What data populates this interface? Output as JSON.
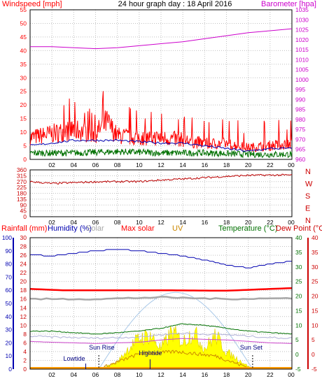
{
  "title": "24 hour graph day : 18 April 2016",
  "colors": {
    "windspeed": "#ff0000",
    "wind_avg": "#0000b0",
    "wind_green": "#007000",
    "barometer": "#cc00cc",
    "direction": "#bb0000",
    "humidity": "#0000b0",
    "solar": "#a8a8a8",
    "max_solar": "#ff0000",
    "uv": "#cc8800",
    "temperature": "#007000",
    "dewpoint": "#cc0000",
    "sun_curve": "#a8c8e8",
    "solar_fill": "#ffff00"
  },
  "labels": {
    "windspeed": "Windspeed [mph]",
    "barometer": "Barometer [hpa]",
    "rainfall": "Rainfall (mm)",
    "humidity": "Humidity (%)",
    "solar": "Solar",
    "max_solar": "Max solar",
    "uv": "UV",
    "temperature": "Temperature (°C)",
    "dewpoint": "Dew Point (°C)",
    "sunrise": "Sun Rise",
    "sunset": "Sun Set",
    "lowtide": "Lowtide",
    "hightide": "Hightide"
  },
  "chart_data": [
    {
      "type": "line",
      "name": "wind-barometer",
      "x_ticks": [
        "02",
        "04",
        "06",
        "08",
        "10",
        "12",
        "14",
        "16",
        "18",
        "20",
        "22",
        "00"
      ],
      "y_left": {
        "label": "Windspeed [mph]",
        "range": [
          0,
          55
        ],
        "ticks": [
          0,
          5,
          10,
          15,
          20,
          25,
          30,
          35,
          40,
          45,
          50,
          55
        ]
      },
      "y_right": {
        "label": "Barometer [hpa]",
        "range": [
          960,
          1035
        ],
        "ticks": [
          960,
          965,
          970,
          975,
          980,
          985,
          990,
          995,
          1000,
          1005,
          1010,
          1015,
          1020,
          1025,
          1030,
          1035
        ]
      },
      "barometer": {
        "hours": [
          0,
          2,
          4,
          6,
          8,
          10,
          12,
          14,
          16,
          18,
          20,
          22,
          24
        ],
        "values": [
          1016.5,
          1016.5,
          1016,
          1015.5,
          1016,
          1017,
          1018,
          1019,
          1020.5,
          1022,
          1023.5,
          1024.5,
          1025.5
        ]
      },
      "gust_envelope": {
        "hours": [
          0,
          2,
          4,
          6,
          7,
          8,
          10,
          12,
          14,
          16,
          18,
          20,
          22,
          24
        ],
        "values": [
          11,
          13,
          15,
          13,
          19,
          12,
          11,
          11,
          10,
          8,
          8,
          6,
          7,
          8
        ]
      },
      "avg_wind": {
        "hours": [
          0,
          2,
          4,
          6,
          8,
          10,
          12,
          14,
          16,
          18,
          20,
          22,
          24
        ],
        "values": [
          5,
          6,
          7,
          7,
          7,
          6.5,
          6,
          6,
          5,
          4,
          3,
          4,
          4
        ]
      },
      "low_wind": {
        "hours": [
          0,
          4,
          8,
          12,
          16,
          20,
          24
        ],
        "values": [
          2,
          2,
          2.5,
          2,
          2,
          1.5,
          1.5
        ]
      }
    },
    {
      "type": "line",
      "name": "wind-direction",
      "y_left_ticks": [
        0,
        45,
        90,
        135,
        180,
        225,
        270,
        315,
        360
      ],
      "y_right_labels": [
        "N",
        "W",
        "S",
        "E",
        "N"
      ],
      "direction": {
        "hours": [
          0,
          2,
          4,
          6,
          8,
          10,
          12,
          14,
          16,
          18,
          20,
          22,
          24
        ],
        "values": [
          270,
          255,
          262,
          268,
          270,
          270,
          282,
          290,
          300,
          310,
          318,
          320,
          320
        ]
      }
    },
    {
      "type": "line",
      "name": "rain-humidity-temperature",
      "y_rain": {
        "range": [
          0,
          30
        ],
        "ticks": [
          0,
          2,
          4,
          6,
          8,
          10,
          12,
          14,
          16,
          18,
          20,
          22,
          24,
          26,
          28,
          30
        ]
      },
      "y_humidity": {
        "range": [
          0,
          100
        ],
        "ticks": [
          0,
          10,
          20,
          30,
          40,
          50,
          60,
          70,
          80,
          90,
          100
        ]
      },
      "y_temp": {
        "range": [
          -5,
          40
        ],
        "ticks": [
          -5,
          0,
          5,
          10,
          15,
          20,
          25,
          30,
          35,
          40
        ]
      },
      "y_dew": {
        "range": [
          -5,
          40
        ],
        "ticks": [
          -5,
          0,
          5,
          10,
          15,
          20,
          25,
          30,
          35,
          40
        ]
      },
      "humidity": {
        "hours": [
          0,
          2,
          4,
          6,
          8,
          10,
          12,
          14,
          16,
          18,
          20,
          22,
          24
        ],
        "values": [
          87,
          86,
          88,
          90,
          91,
          90,
          88,
          86,
          83,
          79,
          77,
          80,
          82
        ]
      },
      "max_solar_line": {
        "hours": [
          0,
          3,
          6,
          12,
          18,
          24
        ],
        "values": [
          18.3,
          18,
          18,
          18,
          17.9,
          18.5
        ]
      },
      "solar_grey": {
        "hours": [
          0,
          6,
          12,
          18,
          24
        ],
        "values": [
          16,
          16,
          16.4,
          16,
          16.2
        ]
      },
      "temperature": {
        "hours": [
          0,
          2,
          4,
          6,
          8,
          10,
          12,
          14,
          16,
          18,
          20,
          22,
          24
        ],
        "values": [
          8,
          8,
          7.5,
          7,
          7.5,
          8,
          9,
          10.5,
          10,
          9,
          8,
          7.5,
          7
        ]
      },
      "dewpoint": {
        "hours": [
          0,
          2,
          4,
          6,
          8,
          10,
          12,
          14,
          16,
          18,
          20,
          22,
          24
        ],
        "values": [
          4.5,
          4.2,
          4,
          3.8,
          4,
          4.2,
          5,
          5.5,
          5.2,
          5,
          4.5,
          4,
          3.8
        ]
      },
      "sun_curve": {
        "rise": 6.3,
        "set": 20.4,
        "peak": 17.5
      },
      "solar_radiation": {
        "hours": [
          6.3,
          8,
          9,
          10,
          11,
          12,
          13,
          14,
          15,
          16,
          17,
          18,
          19,
          20.4
        ],
        "values": [
          0,
          2,
          6,
          9,
          10,
          6,
          11,
          8,
          11,
          6,
          10,
          5,
          3,
          0
        ]
      },
      "uv_values": {
        "hours": [
          6.3,
          10,
          13.5,
          17,
          20.4
        ],
        "values": [
          0,
          3.5,
          4,
          3,
          0
        ]
      },
      "markers": {
        "sunrise": 6.3,
        "sunset": 20.4,
        "lowtide": 5.1,
        "hightide": 11.0
      }
    }
  ]
}
